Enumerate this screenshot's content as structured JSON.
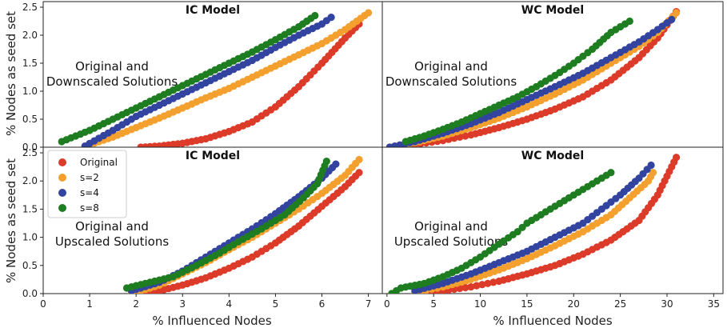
{
  "figure": {
    "ylabel": "% Nodes as seed set",
    "xlabel": "% Influenced Nodes"
  },
  "legend": {
    "items": [
      {
        "label": "Original",
        "color": "#dd3b2a"
      },
      {
        "label": "s=2",
        "color": "#f3a02e"
      },
      {
        "label": "s=4",
        "color": "#3344a0"
      },
      {
        "label": "s=8",
        "color": "#1e7d20"
      }
    ]
  },
  "chart_data": [
    {
      "type": "scatter",
      "title": "IC Model",
      "annotation": [
        "Original and",
        "Downscaled Solutions"
      ],
      "xlim": [
        0,
        7.3
      ],
      "ylim": [
        0,
        2.6
      ],
      "xticks": [],
      "yticks": [
        0.0,
        0.5,
        1.0,
        1.5,
        2.0,
        2.5
      ],
      "series": [
        {
          "name": "Original",
          "color": "#dd3b2a",
          "points": [
            [
              2.1,
              0.0
            ],
            [
              2.5,
              0.02
            ],
            [
              3.0,
              0.07
            ],
            [
              3.5,
              0.15
            ],
            [
              4.0,
              0.28
            ],
            [
              4.5,
              0.45
            ],
            [
              5.0,
              0.72
            ],
            [
              5.5,
              1.08
            ],
            [
              6.0,
              1.5
            ],
            [
              6.5,
              1.95
            ],
            [
              6.8,
              2.2
            ]
          ]
        },
        {
          "name": "s=2",
          "color": "#f3a02e",
          "points": [
            [
              0.9,
              0.02
            ],
            [
              1.5,
              0.18
            ],
            [
              2.0,
              0.35
            ],
            [
              2.5,
              0.52
            ],
            [
              3.0,
              0.7
            ],
            [
              3.5,
              0.88
            ],
            [
              4.0,
              1.05
            ],
            [
              4.5,
              1.25
            ],
            [
              5.0,
              1.45
            ],
            [
              5.5,
              1.65
            ],
            [
              6.0,
              1.85
            ],
            [
              6.5,
              2.1
            ],
            [
              7.0,
              2.4
            ]
          ]
        },
        {
          "name": "s=4",
          "color": "#3344a0",
          "points": [
            [
              0.9,
              0.02
            ],
            [
              1.5,
              0.3
            ],
            [
              2.0,
              0.55
            ],
            [
              2.5,
              0.75
            ],
            [
              3.0,
              0.95
            ],
            [
              3.5,
              1.15
            ],
            [
              4.0,
              1.35
            ],
            [
              4.5,
              1.55
            ],
            [
              5.0,
              1.78
            ],
            [
              5.5,
              2.0
            ],
            [
              6.0,
              2.2
            ],
            [
              6.2,
              2.32
            ]
          ]
        },
        {
          "name": "s=8",
          "color": "#1e7d20",
          "points": [
            [
              0.4,
              0.1
            ],
            [
              1.0,
              0.3
            ],
            [
              1.5,
              0.5
            ],
            [
              2.0,
              0.7
            ],
            [
              2.5,
              0.9
            ],
            [
              3.0,
              1.1
            ],
            [
              3.5,
              1.3
            ],
            [
              4.0,
              1.5
            ],
            [
              4.5,
              1.7
            ],
            [
              5.0,
              1.92
            ],
            [
              5.5,
              2.15
            ],
            [
              5.85,
              2.35
            ]
          ]
        }
      ]
    },
    {
      "type": "scatter",
      "title": "WC Model",
      "annotation": [
        "Original and",
        "Downscaled Solutions"
      ],
      "xlim": [
        -0.5,
        36
      ],
      "ylim": [
        0,
        2.6
      ],
      "xticks": [],
      "yticks": [],
      "series": [
        {
          "name": "Original",
          "color": "#dd3b2a",
          "points": [
            [
              0.3,
              0.0
            ],
            [
              3,
              0.05
            ],
            [
              6,
              0.12
            ],
            [
              9,
              0.22
            ],
            [
              12,
              0.35
            ],
            [
              15,
              0.5
            ],
            [
              18,
              0.68
            ],
            [
              21,
              0.9
            ],
            [
              24,
              1.2
            ],
            [
              27,
              1.6
            ],
            [
              29,
              1.95
            ],
            [
              31,
              2.42
            ]
          ]
        },
        {
          "name": "s=2",
          "color": "#f3a02e",
          "points": [
            [
              0.3,
              0.0
            ],
            [
              3,
              0.08
            ],
            [
              6,
              0.2
            ],
            [
              9,
              0.35
            ],
            [
              12,
              0.52
            ],
            [
              15,
              0.72
            ],
            [
              18,
              0.95
            ],
            [
              21,
              1.2
            ],
            [
              24,
              1.5
            ],
            [
              27,
              1.8
            ],
            [
              29,
              2.05
            ],
            [
              31,
              2.4
            ]
          ]
        },
        {
          "name": "s=4",
          "color": "#3344a0",
          "points": [
            [
              0.3,
              0.0
            ],
            [
              3,
              0.1
            ],
            [
              6,
              0.25
            ],
            [
              9,
              0.42
            ],
            [
              12,
              0.62
            ],
            [
              15,
              0.85
            ],
            [
              18,
              1.08
            ],
            [
              21,
              1.32
            ],
            [
              24,
              1.6
            ],
            [
              27,
              1.88
            ],
            [
              29,
              2.1
            ],
            [
              30.5,
              2.28
            ]
          ]
        },
        {
          "name": "s=8",
          "color": "#1e7d20",
          "points": [
            [
              2,
              0.1
            ],
            [
              4,
              0.2
            ],
            [
              6,
              0.32
            ],
            [
              8,
              0.45
            ],
            [
              10,
              0.6
            ],
            [
              12,
              0.75
            ],
            [
              14,
              0.9
            ],
            [
              16,
              1.08
            ],
            [
              18,
              1.28
            ],
            [
              20,
              1.5
            ],
            [
              22,
              1.75
            ],
            [
              24,
              2.05
            ],
            [
              26,
              2.25
            ]
          ]
        }
      ]
    },
    {
      "type": "scatter",
      "title": "IC Model",
      "annotation": [
        "Original and",
        "Upscaled Solutions"
      ],
      "xlim": [
        0,
        7.3
      ],
      "ylim": [
        0,
        2.6
      ],
      "xticks": [
        0,
        1,
        2,
        3,
        4,
        5,
        6,
        7
      ],
      "yticks": [
        0.0,
        0.5,
        1.0,
        1.5,
        2.0,
        2.5
      ],
      "series": [
        {
          "name": "Original",
          "color": "#dd3b2a",
          "points": [
            [
              2.1,
              0.0
            ],
            [
              2.5,
              0.05
            ],
            [
              3.0,
              0.15
            ],
            [
              3.5,
              0.28
            ],
            [
              4.0,
              0.45
            ],
            [
              4.5,
              0.65
            ],
            [
              5.0,
              0.9
            ],
            [
              5.5,
              1.2
            ],
            [
              6.0,
              1.55
            ],
            [
              6.5,
              1.9
            ],
            [
              6.8,
              2.15
            ]
          ]
        },
        {
          "name": "s=2",
          "color": "#f3a02e",
          "points": [
            [
              1.9,
              0.0
            ],
            [
              2.5,
              0.15
            ],
            [
              3.0,
              0.35
            ],
            [
              3.5,
              0.55
            ],
            [
              4.0,
              0.78
            ],
            [
              4.5,
              1.0
            ],
            [
              5.0,
              1.25
            ],
            [
              5.5,
              1.5
            ],
            [
              6.0,
              1.78
            ],
            [
              6.5,
              2.1
            ],
            [
              6.8,
              2.38
            ]
          ]
        },
        {
          "name": "s=4",
          "color": "#3344a0",
          "points": [
            [
              1.9,
              0.05
            ],
            [
              2.5,
              0.2
            ],
            [
              3.0,
              0.4
            ],
            [
              3.5,
              0.65
            ],
            [
              4.0,
              0.9
            ],
            [
              4.5,
              1.15
            ],
            [
              5.0,
              1.42
            ],
            [
              5.5,
              1.72
            ],
            [
              6.0,
              2.05
            ],
            [
              6.3,
              2.3
            ]
          ]
        },
        {
          "name": "s=8",
          "color": "#1e7d20",
          "points": [
            [
              1.8,
              0.1
            ],
            [
              2.2,
              0.18
            ],
            [
              2.8,
              0.3
            ],
            [
              3.3,
              0.5
            ],
            [
              3.8,
              0.72
            ],
            [
              4.2,
              0.92
            ],
            [
              4.7,
              1.15
            ],
            [
              5.2,
              1.4
            ],
            [
              5.6,
              1.7
            ],
            [
              5.9,
              1.95
            ],
            [
              6.1,
              2.35
            ]
          ]
        }
      ]
    },
    {
      "type": "scatter",
      "title": "WC Model",
      "annotation": [
        "Original and",
        "Upscaled Solutions"
      ],
      "xlim": [
        -0.5,
        36
      ],
      "ylim": [
        0,
        2.6
      ],
      "xticks": [
        0,
        5,
        10,
        15,
        20,
        25,
        30,
        35
      ],
      "yticks": [],
      "series": [
        {
          "name": "Original",
          "color": "#dd3b2a",
          "points": [
            [
              3,
              0.0
            ],
            [
              6,
              0.05
            ],
            [
              9,
              0.12
            ],
            [
              12,
              0.22
            ],
            [
              15,
              0.35
            ],
            [
              18,
              0.5
            ],
            [
              21,
              0.7
            ],
            [
              24,
              0.95
            ],
            [
              27,
              1.3
            ],
            [
              29,
              1.75
            ],
            [
              31,
              2.42
            ]
          ]
        },
        {
          "name": "s=2",
          "color": "#f3a02e",
          "points": [
            [
              3,
              0.02
            ],
            [
              6,
              0.12
            ],
            [
              9,
              0.25
            ],
            [
              12,
              0.42
            ],
            [
              15,
              0.62
            ],
            [
              18,
              0.85
            ],
            [
              21,
              1.1
            ],
            [
              24,
              1.4
            ],
            [
              26,
              1.7
            ],
            [
              28,
              2.0
            ],
            [
              28.5,
              2.15
            ]
          ]
        },
        {
          "name": "s=4",
          "color": "#3344a0",
          "points": [
            [
              3,
              0.05
            ],
            [
              6,
              0.18
            ],
            [
              9,
              0.35
            ],
            [
              12,
              0.55
            ],
            [
              15,
              0.75
            ],
            [
              18,
              1.0
            ],
            [
              21,
              1.25
            ],
            [
              23,
              1.5
            ],
            [
              25,
              1.75
            ],
            [
              27,
              2.05
            ],
            [
              28.3,
              2.28
            ]
          ]
        },
        {
          "name": "s=8",
          "color": "#1e7d20",
          "points": [
            [
              0.5,
              0.0
            ],
            [
              1.5,
              0.1
            ],
            [
              4,
              0.18
            ],
            [
              6,
              0.3
            ],
            [
              8,
              0.45
            ],
            [
              10,
              0.65
            ],
            [
              12,
              0.88
            ],
            [
              14,
              1.1
            ],
            [
              15,
              1.25
            ],
            [
              18,
              1.55
            ],
            [
              20,
              1.75
            ],
            [
              22,
              1.95
            ],
            [
              24,
              2.15
            ]
          ]
        }
      ]
    }
  ]
}
